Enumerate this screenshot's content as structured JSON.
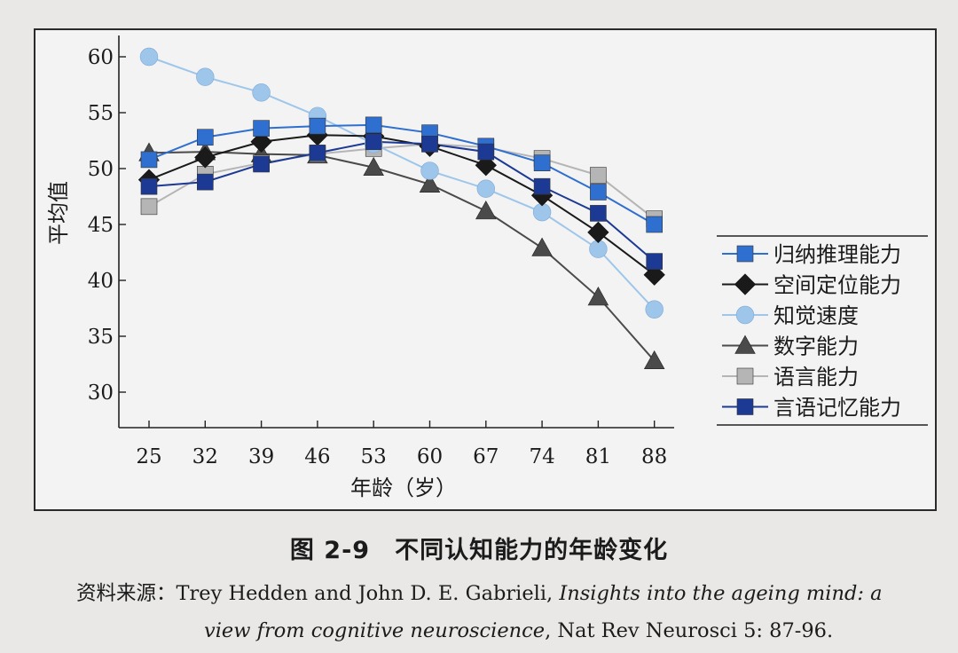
{
  "chart_data": {
    "type": "line",
    "ylabel": "平均值",
    "xlabel": "年龄（岁）",
    "x": [
      25,
      32,
      39,
      46,
      53,
      60,
      67,
      74,
      81,
      88
    ],
    "yticks": [
      30,
      35,
      40,
      45,
      50,
      55,
      60
    ],
    "ylim": [
      30,
      60
    ],
    "grid": false,
    "legend_position": "right",
    "series": [
      {
        "name": "归纳推理能力",
        "marker": "square",
        "color": "#2f6fd0",
        "values": [
          50.8,
          52.8,
          53.6,
          53.8,
          53.9,
          53.2,
          52.0,
          50.5,
          47.9,
          45.0
        ]
      },
      {
        "name": "空间定位能力",
        "marker": "diamond",
        "color": "#1a1a1a",
        "values": [
          49.0,
          51.0,
          52.4,
          53.0,
          52.9,
          52.0,
          50.3,
          47.6,
          44.3,
          40.5
        ]
      },
      {
        "name": "知觉速度",
        "marker": "circle",
        "color": "#9ec6ea",
        "values": [
          60.0,
          58.2,
          56.8,
          54.7,
          52.2,
          49.8,
          48.2,
          46.1,
          42.8,
          37.4
        ]
      },
      {
        "name": "数字能力",
        "marker": "triangle",
        "color": "#4a4a4a",
        "values": [
          51.4,
          51.5,
          51.3,
          51.2,
          50.1,
          48.6,
          46.2,
          42.9,
          38.5,
          32.8
        ]
      },
      {
        "name": "语言能力",
        "marker": "square",
        "color": "#b5b5b5",
        "values": [
          46.6,
          49.5,
          50.5,
          51.3,
          51.8,
          52.2,
          51.9,
          50.9,
          49.4,
          45.5
        ]
      },
      {
        "name": "言语记忆能力",
        "marker": "square",
        "color": "#1c3a94",
        "values": [
          48.4,
          48.8,
          50.4,
          51.4,
          52.4,
          52.2,
          51.5,
          48.4,
          46.0,
          41.7
        ]
      }
    ]
  },
  "caption": "图 2-9　不同认知能力的年龄变化",
  "source": {
    "label": "资料来源：",
    "authors": "Trey Hedden and John D. E. Gabrieli, ",
    "title_part1": "Insights into the ageing mind: a",
    "title_part2": "view from cognitive neuroscience",
    "journal": ", Nat Rev Neurosci 5: 87-96."
  }
}
